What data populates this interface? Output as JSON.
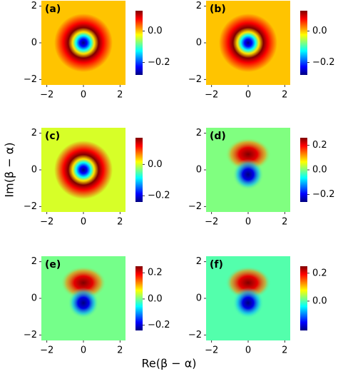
{
  "xlabel": "Re(β − α)",
  "ylabel": "Im(β − α)",
  "chart_data": [
    {
      "type": "heatmap",
      "label": "(a)",
      "colormap": "jet",
      "xlim": [
        -2.3,
        2.3
      ],
      "ylim": [
        -2.3,
        2.3
      ],
      "xticks": [
        {
          "value": -2,
          "label": "−2"
        },
        0,
        2
      ],
      "yticks": [
        {
          "value": -2,
          "label": "−2"
        },
        0,
        2
      ],
      "clim": [
        -0.28,
        0.13
      ],
      "cticks": [
        {
          "value": -0.2,
          "label": "−0.2"
        },
        {
          "value": 0,
          "label": "0.0"
        }
      ]
    },
    {
      "type": "heatmap",
      "label": "(b)",
      "colormap": "jet",
      "xlim": [
        -2.3,
        2.3
      ],
      "ylim": [
        -2.3,
        2.3
      ],
      "xticks": [
        {
          "value": -2,
          "label": "−2"
        },
        0,
        2
      ],
      "yticks": [
        {
          "value": -2,
          "label": "−2"
        },
        0,
        2
      ],
      "clim": [
        -0.28,
        0.13
      ],
      "cticks": [
        {
          "value": -0.2,
          "label": "−0.2"
        },
        {
          "value": 0,
          "label": "0.0"
        }
      ]
    },
    {
      "type": "heatmap",
      "label": "(c)",
      "colormap": "jet",
      "xlim": [
        -2.3,
        2.3
      ],
      "ylim": [
        -2.3,
        2.3
      ],
      "xticks": [
        {
          "value": -2,
          "label": "−2"
        },
        0,
        2
      ],
      "yticks": [
        {
          "value": -2,
          "label": "−2"
        },
        0,
        2
      ],
      "clim": [
        -0.24,
        0.17
      ],
      "cticks": [
        {
          "value": -0.2,
          "label": "−0.2"
        },
        {
          "value": 0,
          "label": "0.0"
        }
      ]
    },
    {
      "type": "heatmap",
      "label": "(d)",
      "colormap": "jet",
      "xlim": [
        -2.3,
        2.3
      ],
      "ylim": [
        -2.3,
        2.3
      ],
      "xticks": [
        {
          "value": -2,
          "label": "−2"
        },
        0,
        2
      ],
      "yticks": [
        {
          "value": -2,
          "label": "−2"
        },
        0,
        2
      ],
      "clim": [
        -0.26,
        0.26
      ],
      "cticks": [
        {
          "value": -0.2,
          "label": "−0.2"
        },
        {
          "value": 0,
          "label": "0.0"
        },
        0.2
      ]
    },
    {
      "type": "heatmap",
      "label": "(e)",
      "colormap": "jet",
      "xlim": [
        -2.3,
        2.3
      ],
      "ylim": [
        -2.3,
        2.3
      ],
      "xticks": [
        {
          "value": -2,
          "label": "−2"
        },
        0,
        2
      ],
      "yticks": [
        {
          "value": -2,
          "label": "−2"
        },
        0,
        2
      ],
      "clim": [
        -0.24,
        0.25
      ],
      "cticks": [
        {
          "value": -0.2,
          "label": "−0.2"
        },
        {
          "value": 0,
          "label": "0.0"
        },
        0.2
      ]
    },
    {
      "type": "heatmap",
      "label": "(f)",
      "colormap": "jet",
      "xlim": [
        -2.3,
        2.3
      ],
      "ylim": [
        -2.3,
        2.3
      ],
      "xticks": [
        {
          "value": -2,
          "label": "−2"
        },
        0,
        2
      ],
      "yticks": [
        {
          "value": -2,
          "label": "−2"
        },
        0,
        2
      ],
      "clim": [
        -0.21,
        0.25
      ],
      "cticks": [
        {
          "value": 0,
          "label": "0.0"
        },
        0.2
      ]
    }
  ]
}
